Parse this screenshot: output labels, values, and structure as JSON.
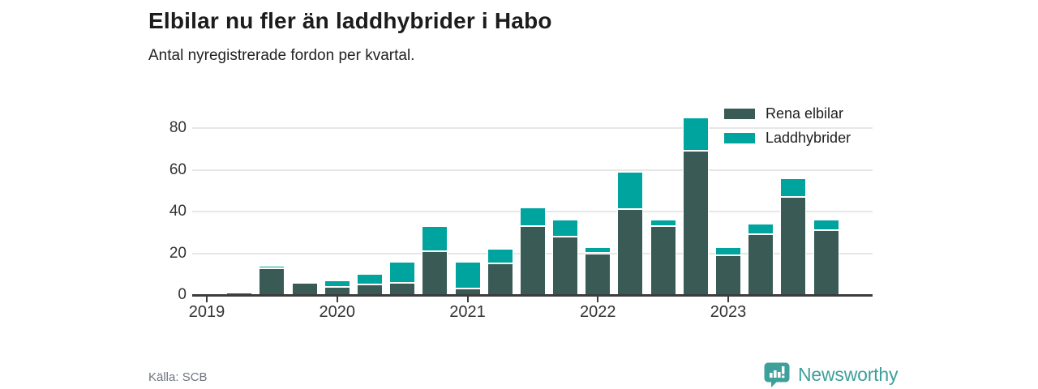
{
  "header": {
    "title": "Elbilar nu fler än laddhybrider i Habo",
    "subtitle": "Antal nyregistrerade fordon per kvartal."
  },
  "legend": [
    {
      "label": "Rena elbilar",
      "color": "#3A5B55"
    },
    {
      "label": "Laddhybrider",
      "color": "#00A49E"
    }
  ],
  "chart_data": {
    "type": "bar",
    "stacked": true,
    "title": "Elbilar nu fler än laddhybrider i Habo",
    "subtitle": "Antal nyregistrerade fordon per kvartal.",
    "categories": [
      "Q1 2019",
      "Q2 2019",
      "Q3 2019",
      "Q4 2019",
      "Q1 2020",
      "Q2 2020",
      "Q3 2020",
      "Q4 2020",
      "Q1 2021",
      "Q2 2021",
      "Q3 2021",
      "Q4 2021",
      "Q1 2022",
      "Q2 2022",
      "Q3 2022",
      "Q4 2022",
      "Q1 2023",
      "Q2 2023",
      "Q3 2023",
      "Q4 2023"
    ],
    "series": [
      {
        "name": "Rena elbilar",
        "color": "#3A5B55",
        "values": [
          0,
          1,
          13,
          6,
          4,
          5,
          6,
          21,
          3,
          15,
          33,
          28,
          20,
          41,
          33,
          69,
          19,
          29,
          47,
          31
        ]
      },
      {
        "name": "Laddhybrider",
        "color": "#00A49E",
        "values": [
          0,
          0,
          1,
          0,
          3,
          5,
          10,
          12,
          13,
          7,
          9,
          8,
          3,
          18,
          3,
          16,
          4,
          5,
          9,
          5
        ]
      }
    ],
    "xlabel": "",
    "ylabel": "",
    "yticks": [
      0,
      20,
      40,
      60,
      80
    ],
    "xticks": [
      "2019",
      "2020",
      "2021",
      "2022",
      "2023"
    ],
    "ylim": [
      0,
      95
    ],
    "grid": "horizontal",
    "legend_position": "top-right"
  },
  "footer": {
    "source": "Källa: SCB",
    "brand": "Newsworthy",
    "brand_color": "#3EA09A",
    "logo_icon": "bar-chart-pin-icon"
  }
}
